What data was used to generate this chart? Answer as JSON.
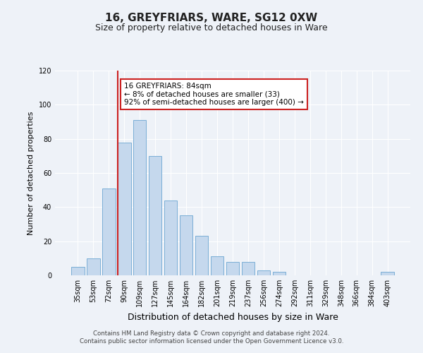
{
  "title": "16, GREYFRIARS, WARE, SG12 0XW",
  "subtitle": "Size of property relative to detached houses in Ware",
  "xlabel": "Distribution of detached houses by size in Ware",
  "ylabel": "Number of detached properties",
  "categories": [
    "35sqm",
    "53sqm",
    "72sqm",
    "90sqm",
    "109sqm",
    "127sqm",
    "145sqm",
    "164sqm",
    "182sqm",
    "201sqm",
    "219sqm",
    "237sqm",
    "256sqm",
    "274sqm",
    "292sqm",
    "311sqm",
    "329sqm",
    "348sqm",
    "366sqm",
    "384sqm",
    "403sqm"
  ],
  "values": [
    5,
    10,
    51,
    78,
    91,
    70,
    44,
    35,
    23,
    11,
    8,
    8,
    3,
    2,
    0,
    0,
    0,
    0,
    0,
    0,
    2
  ],
  "bar_color": "#c5d8ed",
  "bar_edge_color": "#7aaed6",
  "vline_color": "#cc2222",
  "annotation_text": "16 GREYFRIARS: 84sqm\n← 8% of detached houses are smaller (33)\n92% of semi-detached houses are larger (400) →",
  "annotation_box_facecolor": "#ffffff",
  "annotation_box_edgecolor": "#cc2222",
  "ylim": [
    0,
    120
  ],
  "yticks": [
    0,
    20,
    40,
    60,
    80,
    100,
    120
  ],
  "footer_text": "Contains HM Land Registry data © Crown copyright and database right 2024.\nContains public sector information licensed under the Open Government Licence v3.0.",
  "bg_color": "#eef2f8",
  "plot_bg_color": "#eef2f8",
  "title_fontsize": 11,
  "subtitle_fontsize": 9,
  "ylabel_fontsize": 8,
  "xlabel_fontsize": 9,
  "tick_fontsize": 7
}
